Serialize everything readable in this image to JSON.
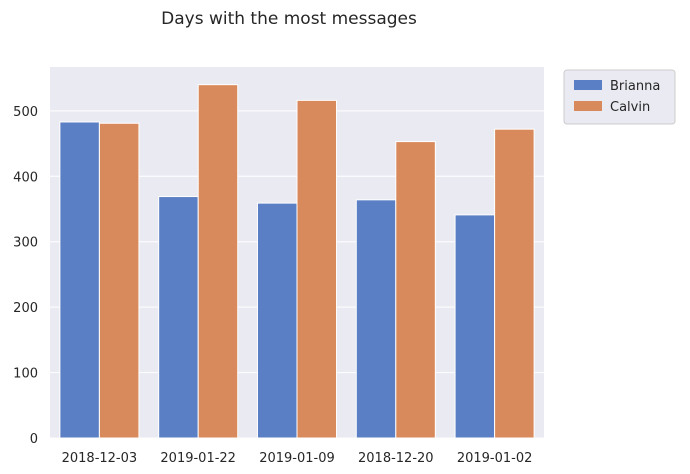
{
  "chart_data": {
    "type": "bar",
    "title": "Days with the most messages",
    "xlabel": "",
    "ylabel": "",
    "categories": [
      "2018-12-03",
      "2019-01-22",
      "2019-01-09",
      "2018-12-20",
      "2019-01-02"
    ],
    "series": [
      {
        "name": "Brianna",
        "color": "#5b7fc4",
        "values": [
          483,
          369,
          359,
          364,
          341
        ]
      },
      {
        "name": "Calvin",
        "color": "#d98a5c",
        "values": [
          481,
          540,
          516,
          453,
          472
        ]
      }
    ],
    "yticks": [
      0,
      100,
      200,
      300,
      400,
      500
    ],
    "ylim": [
      0,
      567
    ],
    "grid": true,
    "legend_position": "outside-top-right",
    "background": "#eaeaf2",
    "grid_color": "#ffffff"
  }
}
